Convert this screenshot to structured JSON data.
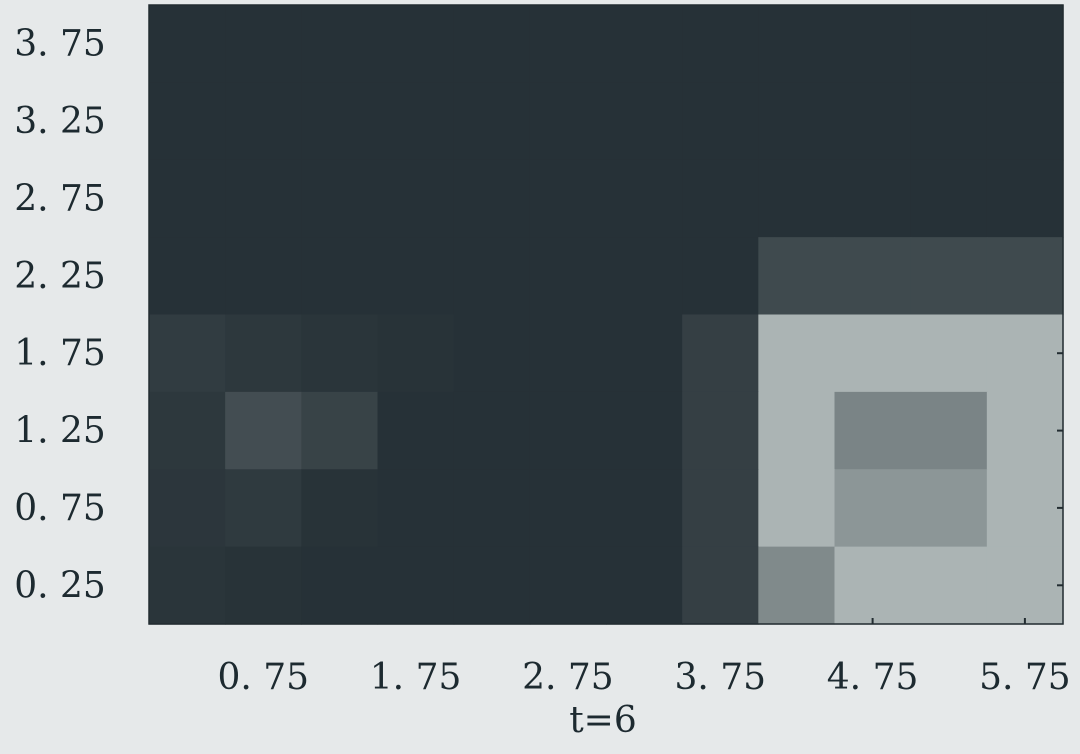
{
  "chart_data": {
    "type": "heatmap",
    "title": "",
    "xlabel": "t=6",
    "ylabel": "",
    "x_tick_labels": [
      "0. 75",
      "1. 75",
      "2. 75",
      "3. 75",
      "4. 75",
      "5. 75"
    ],
    "y_tick_labels": [
      "3. 75",
      "3. 25",
      "2. 75",
      "2. 25",
      "1. 75",
      "1. 25",
      "0. 75",
      "0. 25"
    ],
    "x": [
      0.25,
      0.75,
      1.25,
      1.75,
      2.25,
      2.75,
      3.25,
      3.75,
      4.25,
      4.75,
      5.25,
      5.75
    ],
    "y": [
      3.75,
      3.25,
      2.75,
      2.25,
      1.75,
      1.25,
      0.75,
      0.25
    ],
    "colormap": "gray",
    "values": [
      [
        0.08,
        0.08,
        0.08,
        0.08,
        0.08,
        0.08,
        0.08,
        0.08,
        0.08,
        0.08,
        0.08,
        0.08
      ],
      [
        0.08,
        0.08,
        0.08,
        0.08,
        0.08,
        0.08,
        0.08,
        0.08,
        0.08,
        0.08,
        0.08,
        0.08
      ],
      [
        0.08,
        0.08,
        0.08,
        0.08,
        0.08,
        0.08,
        0.08,
        0.08,
        0.08,
        0.08,
        0.08,
        0.08
      ],
      [
        0.08,
        0.08,
        0.08,
        0.08,
        0.08,
        0.08,
        0.08,
        0.08,
        0.22,
        0.22,
        0.22,
        0.22
      ],
      [
        0.14,
        0.12,
        0.1,
        0.09,
        0.08,
        0.08,
        0.08,
        0.16,
        0.82,
        0.82,
        0.82,
        0.82
      ],
      [
        0.12,
        0.24,
        0.18,
        0.08,
        0.08,
        0.08,
        0.08,
        0.16,
        0.82,
        0.55,
        0.55,
        0.82
      ],
      [
        0.11,
        0.13,
        0.09,
        0.08,
        0.08,
        0.08,
        0.08,
        0.16,
        0.82,
        0.65,
        0.65,
        0.82
      ],
      [
        0.1,
        0.09,
        0.08,
        0.08,
        0.08,
        0.08,
        0.08,
        0.16,
        0.58,
        0.82,
        0.82,
        0.82
      ]
    ]
  }
}
